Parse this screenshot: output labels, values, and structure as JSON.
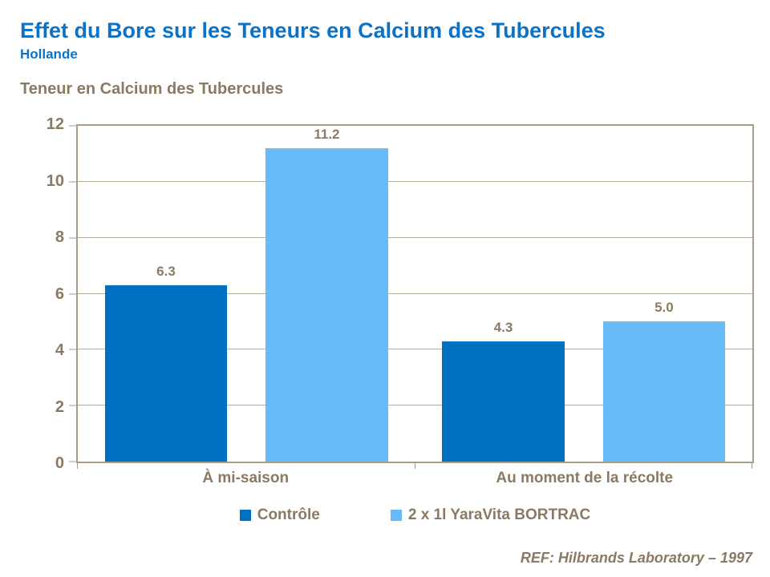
{
  "header": {
    "title": "Effet du Bore sur les Teneurs en Calcium des Tubercules",
    "subtitle": "Hollande"
  },
  "footer": {
    "reference": "REF: Hilbrands Laboratory – 1997"
  },
  "colors": {
    "accent_blue": "#0b72c5",
    "text_brown": "#8a7a64",
    "axis_line": "#a89b8a",
    "gridline": "#b9ae9e",
    "background": "#ffffff"
  },
  "chart_data": {
    "type": "bar",
    "title": "Teneur en Calcium des Tubercules",
    "categories": [
      "À mi-saison",
      "Au moment de la récolte"
    ],
    "series": [
      {
        "name": "Contrôle",
        "color": "#0071c1",
        "values": [
          6.3,
          4.3
        ]
      },
      {
        "name": "2 x 1l YaraVita BORTRAC",
        "color": "#66bbf7",
        "values": [
          11.2,
          5.0
        ]
      }
    ],
    "xlabel": "",
    "ylabel": "",
    "ylim": [
      0,
      12
    ],
    "ytick_step": 2,
    "grid": true,
    "legend_position": "bottom",
    "data_labels": true,
    "data_label_format": "one-decimal"
  }
}
